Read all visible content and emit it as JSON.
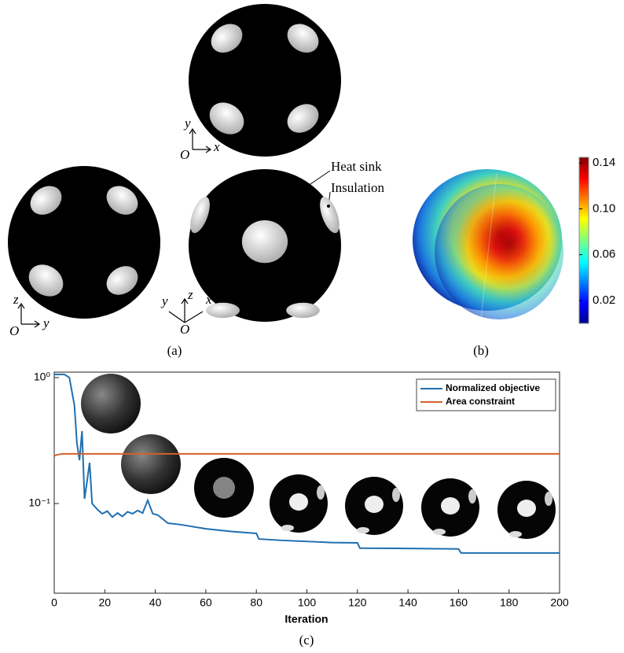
{
  "panel_a": {
    "caption": "(a)",
    "labels": [
      "Heat sink",
      "Insulation"
    ],
    "axes_top": [
      "y",
      "x",
      "O"
    ],
    "axes_left": [
      "z",
      "y",
      "O"
    ],
    "axes_right": [
      "y",
      "z",
      "x",
      "O"
    ]
  },
  "panel_b": {
    "caption": "(b)",
    "colorbar": {
      "lim": [
        0,
        0.145
      ],
      "ticks": [
        0.02,
        0.06,
        {
          "value": 0.1,
          "label": "0.10"
        },
        0.14
      ]
    }
  },
  "chart_data": {
    "type": "line",
    "caption": "(c)",
    "xlabel": "Iteration",
    "log_y": true,
    "legend": "top-right",
    "x": [
      0,
      2,
      4,
      6,
      8,
      9,
      10,
      11,
      12,
      13,
      14,
      15,
      17,
      19,
      21,
      23,
      25,
      27,
      29,
      31,
      33,
      35,
      37,
      39,
      41,
      45,
      50,
      60,
      70,
      80,
      81,
      90,
      100,
      110,
      120,
      121,
      140,
      160,
      161,
      180,
      200
    ],
    "series": [
      {
        "name": "Normalized objective",
        "color": "#1f6fb0",
        "values": [
          1.06,
          1.06,
          1.06,
          1.0,
          0.6,
          0.3,
          0.221,
          0.376,
          0.109,
          0.15,
          0.211,
          0.1,
          0.09,
          0.083,
          0.087,
          0.078,
          0.084,
          0.079,
          0.086,
          0.083,
          0.088,
          0.084,
          0.106,
          0.083,
          0.081,
          0.0698,
          0.068,
          0.063,
          0.06,
          0.0579,
          0.0523,
          0.051,
          0.05,
          0.049,
          0.0487,
          0.0442,
          0.044,
          0.0436,
          0.0405,
          0.0405,
          0.0405
        ]
      },
      {
        "name": "Area constraint",
        "color": "#d2612a",
        "values": [
          0.24,
          0.246,
          0.248,
          0.248,
          0.248,
          0.248,
          0.248,
          0.248,
          0.248,
          0.248,
          0.248,
          0.248,
          0.248,
          0.248,
          0.248,
          0.248,
          0.248,
          0.248,
          0.248,
          0.248,
          0.248,
          0.248,
          0.248,
          0.248,
          0.248,
          0.248,
          0.248,
          0.248,
          0.248,
          0.248,
          0.248,
          0.248,
          0.248,
          0.248,
          0.248,
          0.248,
          0.248,
          0.248,
          0.248,
          0.248,
          0.248
        ]
      }
    ],
    "xlim": [
      0,
      200
    ],
    "xticks": [
      0,
      20,
      40,
      60,
      80,
      100,
      120,
      140,
      160,
      180,
      200
    ],
    "ylim": [
      0.0194,
      1.105
    ],
    "yticks": [
      {
        "value": 0.1,
        "label": "10⁻¹"
      },
      {
        "value": 1,
        "label": "10⁰"
      }
    ]
  }
}
